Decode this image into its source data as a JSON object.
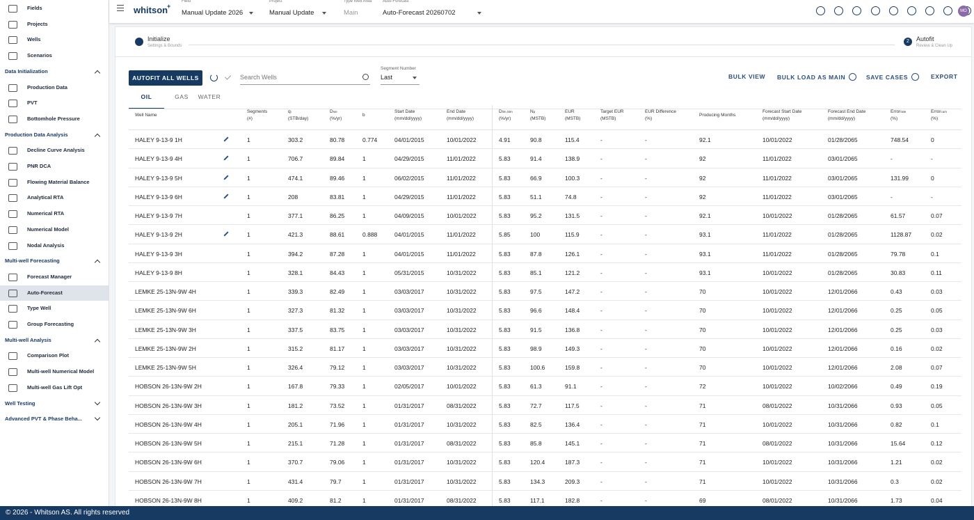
{
  "sidebar": {
    "top_items": [
      "Fields",
      "Projects",
      "Wells",
      "Scenarios"
    ],
    "sections": [
      {
        "title": "Data Initialization",
        "expanded": true,
        "items": [
          "Production Data",
          "PVT",
          "Bottomhole Pressure"
        ]
      },
      {
        "title": "Production Data Analysis",
        "expanded": true,
        "items": [
          "Decline Curve Analysis",
          "PNR DCA",
          "Flowing Material Balance",
          "Analytical RTA",
          "Numerical RTA",
          "Numerical Model",
          "Nodal Analysis"
        ]
      },
      {
        "title": "Multi-well Forecasting",
        "expanded": true,
        "items": [
          "Forecast Manager",
          "Auto-Forecast",
          "Type Well",
          "Group Forecasting"
        ]
      },
      {
        "title": "Multi-well Analysis",
        "expanded": true,
        "items": [
          "Comparison Plot",
          "Multi-well Numerical Model",
          "Multi-well Gas Lift Opt"
        ]
      },
      {
        "title": "Well Testing",
        "expanded": false,
        "items": []
      },
      {
        "title": "Advanced PVT & Phase Beha...",
        "expanded": false,
        "items": []
      }
    ],
    "active": {
      "section": 2,
      "item": 1
    }
  },
  "topbar": {
    "logo": "whitson",
    "logo_sup": "+",
    "fields": [
      {
        "label": "Field",
        "value": "Manual Update 2026",
        "enabled": true
      },
      {
        "label": "Project",
        "value": "Manual Update",
        "enabled": true
      },
      {
        "label": "Type Well Area",
        "value": "Main",
        "enabled": false
      },
      {
        "label": "Auto-Forecast",
        "value": "Auto-Forecast 20260702",
        "enabled": true
      }
    ],
    "avatar": "MO"
  },
  "stepper": {
    "steps": [
      {
        "title": "Initialize",
        "subtitle": "Settings & Bounds"
      },
      {
        "number": 2,
        "title": "Autofit",
        "subtitle": "Review & Clean Up"
      }
    ]
  },
  "toolbar": {
    "autofit_button": "AUTOFIT ALL WELLS",
    "search_placeholder": "Search Wells",
    "segment_label": "Segment Number",
    "segment_value": "Last",
    "actions": [
      {
        "label": "BULK VIEW",
        "help": false
      },
      {
        "label": "BULK LOAD AS MAIN",
        "help": true
      },
      {
        "label": "SAVE CASES",
        "help": true
      },
      {
        "label": "EXPORT",
        "help": false
      }
    ]
  },
  "tabs": {
    "items": [
      "OIL",
      "GAS",
      "WATER"
    ],
    "active": 0
  },
  "table": {
    "headers": [
      {
        "title": "Well Name"
      },
      {
        "title": "Segments",
        "unit": "(#)"
      },
      {
        "title": "q",
        "sub": "i",
        "unit": "(STB/day)"
      },
      {
        "title": "D",
        "sub": "sei",
        "unit": "(%/yr)"
      },
      {
        "title": "b"
      },
      {
        "title": "Start Date",
        "unit": "(mm/dd/yyyy)"
      },
      {
        "title": "End Date",
        "unit": "(mm/dd/yyyy)"
      },
      {
        "title": "D",
        "sub": "lim,Stm",
        "unit": "(%/yr)"
      },
      {
        "title": "N",
        "sub": "p",
        "unit": "(MSTB)"
      },
      {
        "title": "EUR",
        "unit": "(MSTB)"
      },
      {
        "title": "Target EUR",
        "unit": "(MSTB)"
      },
      {
        "title": "EUR Difference",
        "unit": "(%)"
      },
      {
        "title": "Producing Months"
      },
      {
        "title": "Forecast Start Date",
        "unit": "(mm/dd/yyyy)"
      },
      {
        "title": "Forecast End Date",
        "unit": "(mm/dd/yyyy)"
      },
      {
        "title": "Error",
        "sub": "rate",
        "unit": "(%)"
      },
      {
        "title": "Error",
        "sub": "cum",
        "unit": "(%)"
      }
    ],
    "rows": [
      {
        "editable": true,
        "cells": [
          "HALEY 9-13-9 1H",
          "1",
          "303.2",
          "80.78",
          "0.774",
          "04/01/2015",
          "10/01/2022",
          "4.91",
          "90.8",
          "115.4",
          "-",
          "-",
          "92.1",
          "10/01/2022",
          "01/28/2065",
          "748.54",
          "0"
        ]
      },
      {
        "editable": true,
        "cells": [
          "HALEY 9-13-9 4H",
          "1",
          "706.7",
          "89.84",
          "1",
          "04/29/2015",
          "11/01/2022",
          "5.83",
          "91.4",
          "138.9",
          "-",
          "-",
          "92",
          "11/01/2022",
          "03/01/2065",
          "-",
          "-"
        ]
      },
      {
        "editable": true,
        "cells": [
          "HALEY 9-13-9 5H",
          "1",
          "474.1",
          "89.46",
          "1",
          "06/02/2015",
          "11/01/2022",
          "5.83",
          "66.9",
          "100.3",
          "-",
          "-",
          "92",
          "11/01/2022",
          "03/01/2065",
          "131.99",
          "0"
        ]
      },
      {
        "editable": true,
        "cells": [
          "HALEY 9-13-9 6H",
          "1",
          "208",
          "83.81",
          "1",
          "04/29/2015",
          "11/01/2022",
          "5.83",
          "51.1",
          "74.8",
          "-",
          "-",
          "92",
          "11/01/2022",
          "03/01/2065",
          "-",
          "-"
        ]
      },
      {
        "editable": false,
        "cells": [
          "HALEY 9-13-9 7H",
          "1",
          "377.1",
          "86.25",
          "1",
          "04/09/2015",
          "10/01/2022",
          "5.83",
          "95.2",
          "131.5",
          "-",
          "-",
          "92.1",
          "10/01/2022",
          "01/28/2065",
          "61.57",
          "0.07"
        ]
      },
      {
        "editable": true,
        "cells": [
          "HALEY 9-13-9 2H",
          "1",
          "421.3",
          "88.61",
          "0.888",
          "04/01/2015",
          "11/01/2022",
          "5.85",
          "100",
          "115.9",
          "-",
          "-",
          "93.1",
          "11/01/2022",
          "01/28/2065",
          "1128.87",
          "0.02"
        ]
      },
      {
        "editable": false,
        "cells": [
          "HALEY 9-13-9 3H",
          "1",
          "394.2",
          "87.28",
          "1",
          "04/01/2015",
          "11/01/2022",
          "5.83",
          "87.8",
          "126.1",
          "-",
          "-",
          "93.1",
          "11/01/2022",
          "01/28/2065",
          "79.78",
          "0.1"
        ]
      },
      {
        "editable": false,
        "cells": [
          "HALEY 9-13-9 8H",
          "1",
          "328.1",
          "84.43",
          "1",
          "05/31/2015",
          "10/31/2022",
          "5.83",
          "85.1",
          "121.2",
          "-",
          "-",
          "93.1",
          "10/01/2022",
          "01/28/2065",
          "30.83",
          "0.11"
        ]
      },
      {
        "editable": false,
        "cells": [
          "LEMKE 25-13N-9W 4H",
          "1",
          "339.3",
          "82.49",
          "1",
          "03/03/2017",
          "10/31/2022",
          "5.83",
          "97.5",
          "147.2",
          "-",
          "-",
          "70",
          "10/01/2022",
          "12/01/2066",
          "0.43",
          "0.03"
        ]
      },
      {
        "editable": false,
        "cells": [
          "LEMKE 25-13N-9W 6H",
          "1",
          "327.3",
          "81.32",
          "1",
          "03/03/2017",
          "10/31/2022",
          "5.83",
          "96.6",
          "148.4",
          "-",
          "-",
          "70",
          "10/01/2022",
          "12/01/2066",
          "0.25",
          "0.05"
        ]
      },
      {
        "editable": false,
        "cells": [
          "LEMKE 25-13N-9W 3H",
          "1",
          "337.5",
          "83.75",
          "1",
          "03/03/2017",
          "10/31/2022",
          "5.83",
          "91.5",
          "136.8",
          "-",
          "-",
          "70",
          "10/01/2022",
          "12/01/2066",
          "0.25",
          "0.03"
        ]
      },
      {
        "editable": false,
        "cells": [
          "LEMKE 25-13N-9W 2H",
          "1",
          "315.2",
          "81.17",
          "1",
          "03/03/2017",
          "10/31/2022",
          "5.83",
          "98.9",
          "149.3",
          "-",
          "-",
          "70",
          "10/01/2022",
          "12/01/2066",
          "0.16",
          "0.02"
        ]
      },
      {
        "editable": false,
        "cells": [
          "LEMKE 25-13N-9W 5H",
          "1",
          "326.4",
          "79.12",
          "1",
          "03/03/2017",
          "10/31/2022",
          "5.83",
          "100.6",
          "159.8",
          "-",
          "-",
          "70",
          "10/01/2022",
          "12/01/2066",
          "2.08",
          "0.07"
        ]
      },
      {
        "editable": false,
        "cells": [
          "HOBSON 26-13N-9W 2H",
          "1",
          "167.8",
          "79.33",
          "1",
          "02/05/2017",
          "10/01/2022",
          "5.83",
          "61.3",
          "91.1",
          "-",
          "-",
          "72",
          "10/01/2022",
          "10/02/2066",
          "0.49",
          "0.19"
        ]
      },
      {
        "editable": false,
        "cells": [
          "HOBSON 26-13N-9W 3H",
          "1",
          "181.2",
          "73.52",
          "1",
          "01/31/2017",
          "08/31/2022",
          "5.83",
          "72.7",
          "117.5",
          "-",
          "-",
          "71",
          "08/01/2022",
          "10/31/2066",
          "0.93",
          "0.05"
        ]
      },
      {
        "editable": false,
        "cells": [
          "HOBSON 26-13N-9W 4H",
          "1",
          "205.1",
          "71.96",
          "1",
          "01/31/2017",
          "10/31/2022",
          "5.83",
          "82.5",
          "136.4",
          "-",
          "-",
          "71",
          "10/01/2022",
          "10/31/2066",
          "0.82",
          "0.1"
        ]
      },
      {
        "editable": false,
        "cells": [
          "HOBSON 26-13N-9W 5H",
          "1",
          "215.1",
          "71.28",
          "1",
          "01/31/2017",
          "08/31/2022",
          "5.83",
          "85.8",
          "145.1",
          "-",
          "-",
          "71",
          "08/01/2022",
          "10/31/2066",
          "15.64",
          "0.12"
        ]
      },
      {
        "editable": false,
        "cells": [
          "HOBSON 26-13N-9W 6H",
          "1",
          "370.7",
          "79.06",
          "1",
          "01/31/2017",
          "10/31/2022",
          "5.83",
          "120.4",
          "187.3",
          "-",
          "-",
          "71",
          "10/01/2022",
          "10/31/2066",
          "1.21",
          "0.02"
        ]
      },
      {
        "editable": false,
        "cells": [
          "HOBSON 26-13N-9W 7H",
          "1",
          "431.4",
          "79.7",
          "1",
          "01/31/2017",
          "10/31/2022",
          "5.83",
          "134.3",
          "209.3",
          "-",
          "-",
          "71",
          "10/01/2022",
          "10/31/2066",
          "0.3",
          "0.02"
        ]
      },
      {
        "editable": false,
        "cells": [
          "HOBSON 26-13N-9W 8H",
          "1",
          "409.2",
          "81.2",
          "1",
          "01/31/2017",
          "08/31/2022",
          "5.83",
          "117.1",
          "182.8",
          "-",
          "-",
          "69",
          "08/01/2022",
          "10/31/2066",
          "1.73",
          "0.04"
        ]
      }
    ]
  },
  "footer": {
    "text": "© 2026 - Whitson AS. All rights reserved"
  }
}
